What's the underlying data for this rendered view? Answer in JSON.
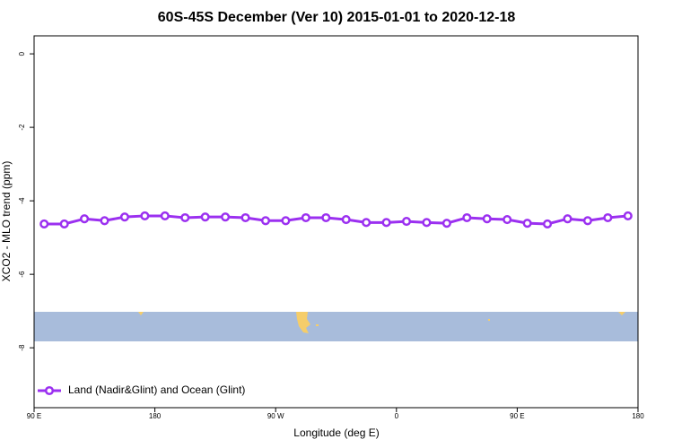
{
  "chart_data": {
    "type": "line",
    "title": "60S-45S December (Ver 10)   2015-01-01 to 2020-12-18",
    "x_label": "Longitude (deg E)",
    "y_label": "XCO2 - MLO trend (ppm)",
    "x": [
      97.5,
      112.5,
      127.5,
      142.5,
      157.5,
      172.5,
      187.5,
      202.5,
      217.5,
      232.5,
      247.5,
      262.5,
      277.5,
      292.5,
      307.5,
      322.5,
      337.5,
      352.5,
      367.5,
      382.5,
      397.5,
      412.5,
      427.5,
      442.5,
      457.5,
      472.5,
      487.5,
      502.5,
      517.5,
      532.5
    ],
    "series": [
      {
        "name": "Land (Nadir&Glint) and Ocean (Glint)",
        "color": "#9b30f0",
        "values": [
          -4.63,
          -4.63,
          -4.49,
          -4.54,
          -4.44,
          -4.41,
          -4.41,
          -4.46,
          -4.44,
          -4.44,
          -4.46,
          -4.54,
          -4.54,
          -4.46,
          -4.46,
          -4.51,
          -4.59,
          -4.59,
          -4.56,
          -4.59,
          -4.61,
          -4.46,
          -4.49,
          -4.51,
          -4.61,
          -4.63,
          -4.49,
          -4.54,
          -4.46,
          -4.41
        ]
      }
    ],
    "xlim": [
      90,
      540
    ],
    "xticks": [
      {
        "value": 90,
        "label": "90 E"
      },
      180,
      {
        "value": 270,
        "label": "90 W"
      },
      {
        "value": 360,
        "label": "0"
      },
      {
        "value": 450,
        "label": "90 E"
      },
      {
        "value": 540,
        "label": "180"
      }
    ],
    "ylim": [
      -9.63,
      0.49
    ],
    "yticks": [
      0,
      -2,
      -4,
      -6,
      -8
    ],
    "legend": "bottom-left"
  }
}
